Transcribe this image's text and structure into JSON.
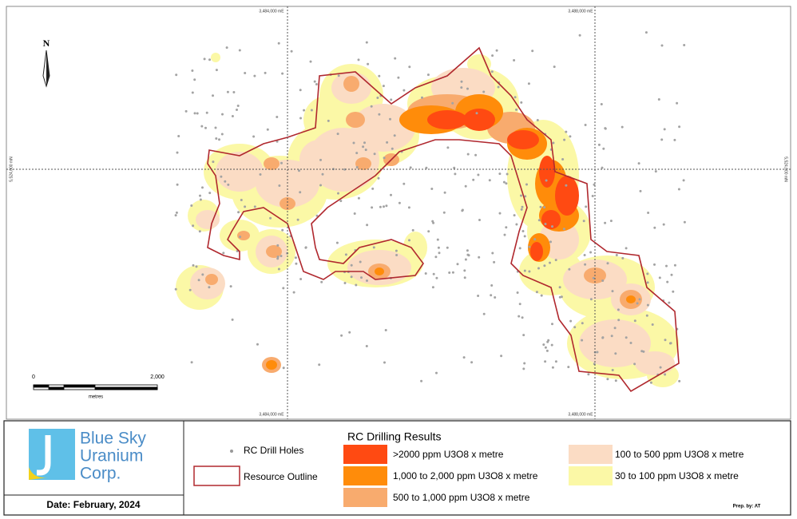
{
  "map": {
    "north": "N",
    "grid_labels": {
      "top": [
        "3,484,000 mE",
        "3,488,000 mE"
      ],
      "bottom": [
        "3,484,000 mE",
        "3,488,000 mE"
      ],
      "left": "5,524,000 mN",
      "right": "5,524,000 mN"
    },
    "scale_bar": {
      "start": "0",
      "end": "2,000",
      "unit": "metres"
    }
  },
  "logo": {
    "name_lines": [
      "Blue Sky",
      "Uranium",
      "Corp."
    ]
  },
  "date": "Date: February, 2024",
  "legend": {
    "drill_holes": "RC Drill Holes",
    "outline": "Resource Outline",
    "title": "RC Drilling Results",
    "classes": [
      {
        "label": ">2000 ppm U3O8 x metre",
        "color": "#ff4a12"
      },
      {
        "label": "1,000 to 2,000 ppm U3O8 x metre",
        "color": "#ff8c0a"
      },
      {
        "label": "500 to 1,000 ppm U3O8 x metre",
        "color": "#f8ab6e"
      },
      {
        "label": "100 to 500 ppm U3O8 x metre",
        "color": "#fbdcc4"
      },
      {
        "label": "30 to 100 ppm U3O8 x metre",
        "color": "#fbf8a6"
      }
    ]
  },
  "credit": "Prep. by: AT"
}
